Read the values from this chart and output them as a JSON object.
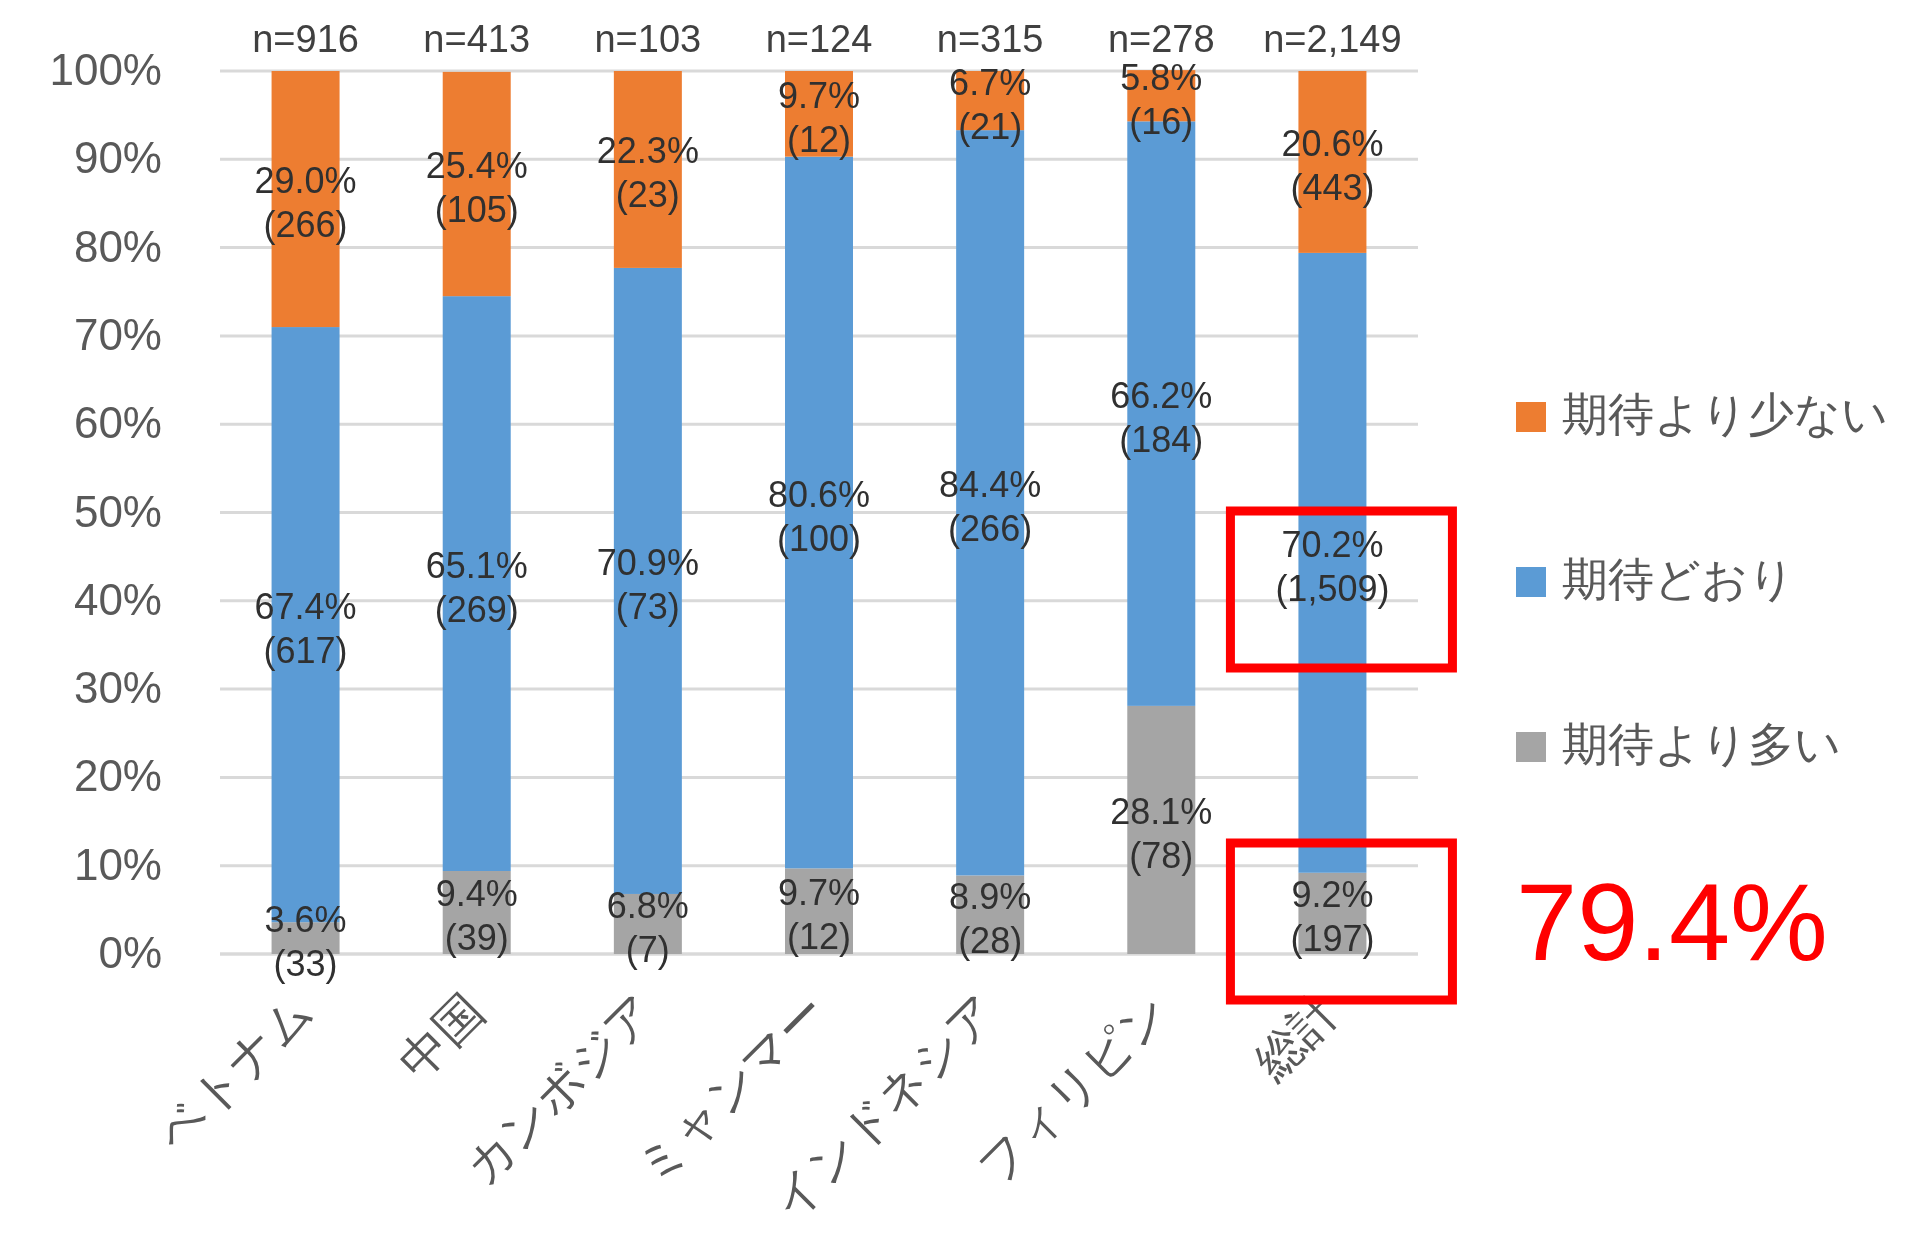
{
  "chart_data": {
    "type": "bar",
    "stacked": true,
    "categories": [
      "ベトナム",
      "中国",
      "カンボジア",
      "ミャンマー",
      "インドネシア",
      "フィリピン",
      "総計"
    ],
    "series": [
      {
        "name": "期待より多い",
        "color": "#a5a5a5",
        "values": [
          3.6,
          9.4,
          6.8,
          9.7,
          8.9,
          28.1,
          9.2
        ],
        "value_labels": [
          "3.6% (33)",
          "9.4% (39)",
          "6.8% (7)",
          "9.7% (12)",
          "8.9% (28)",
          "28.1% (78)",
          "9.2% (197)"
        ]
      },
      {
        "name": "期待どおり",
        "color": "#5b9bd5",
        "values": [
          67.4,
          65.1,
          70.9,
          80.6,
          84.4,
          66.2,
          70.2
        ],
        "value_labels": [
          "67.4% (617)",
          "65.1% (269)",
          "70.9% (73)",
          "80.6% (100)",
          "84.4% (266)",
          "66.2% (184)",
          "70.2% (1,509)"
        ]
      },
      {
        "name": "期待より少ない",
        "color": "#ed7d31",
        "values": [
          29.0,
          25.4,
          22.3,
          9.7,
          6.7,
          5.8,
          20.6
        ],
        "value_labels": [
          "29.0% (266)",
          "25.4% (105)",
          "22.3% (23)",
          "9.7% (12)",
          "6.7% (21)",
          "5.8% (16)",
          "20.6% (443)"
        ]
      }
    ],
    "ylim": [
      0,
      100
    ],
    "yticks": [
      {
        "value": 0,
        "label": "0%"
      },
      {
        "value": 10,
        "label": "10%"
      },
      {
        "value": 20,
        "label": "20%"
      },
      {
        "value": 30,
        "label": "30%"
      },
      {
        "value": 40,
        "label": "40%"
      },
      {
        "value": 50,
        "label": "50%"
      },
      {
        "value": 60,
        "label": "60%"
      },
      {
        "value": 70,
        "label": "70%"
      },
      {
        "value": 80,
        "label": "80%"
      },
      {
        "value": 90,
        "label": "90%"
      },
      {
        "value": 100,
        "label": "100%"
      }
    ],
    "grid": "y",
    "legend": "right",
    "annotations": [
      {
        "text": "n=916",
        "x": "ベトナム",
        "y": 100
      },
      {
        "text": "n=413",
        "x": "中国",
        "y": 100
      },
      {
        "text": "n=103",
        "x": "カンボジア",
        "y": 100
      },
      {
        "text": "n=124",
        "x": "ミャンマー",
        "y": 100
      },
      {
        "text": "n=315",
        "x": "インドネシア",
        "y": 100
      },
      {
        "text": "n=278",
        "x": "フィリピン",
        "y": 100
      },
      {
        "text": "n=2,149",
        "x": "総計",
        "y": 100
      },
      "79.4%"
    ]
  }
}
